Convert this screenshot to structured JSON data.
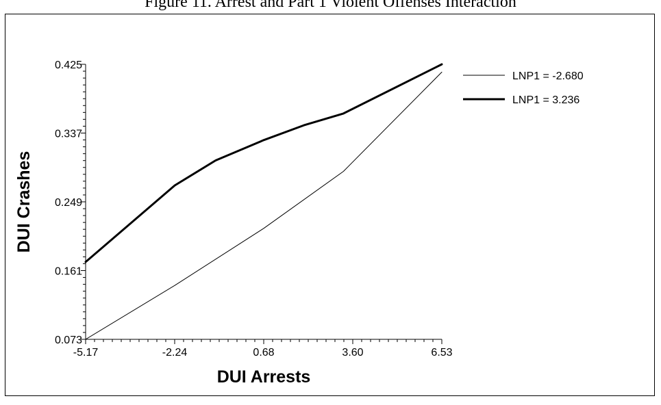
{
  "chart_data": {
    "type": "line",
    "title": "Figure 11. Arrest and Part 1 Violent Offenses Interaction",
    "xlabel": "DUI Arrests",
    "ylabel": "DUI Crashes",
    "xlim": [
      -5.17,
      6.53
    ],
    "ylim": [
      0.073,
      0.425
    ],
    "xticks": [
      "-5.17",
      "-2.24",
      "0.68",
      "3.60",
      "6.53"
    ],
    "yticks": [
      "0.073",
      "0.161",
      "0.249",
      "0.337",
      "0.425"
    ],
    "legend_position": "right",
    "series": [
      {
        "name": "LNP1 = -2.680",
        "style": "thin",
        "x": [
          -5.17,
          -2.24,
          0.68,
          3.3,
          6.53
        ],
        "y": [
          0.073,
          0.142,
          0.215,
          0.288,
          0.415
        ]
      },
      {
        "name": "LNP1 = 3.236",
        "style": "thick",
        "x": [
          -5.17,
          -2.24,
          -0.9,
          0.68,
          2.0,
          3.3,
          6.53
        ],
        "y": [
          0.172,
          0.27,
          0.302,
          0.328,
          0.347,
          0.362,
          0.425
        ]
      }
    ]
  }
}
